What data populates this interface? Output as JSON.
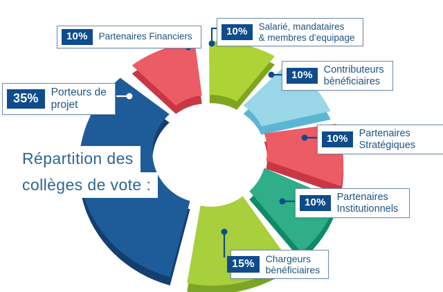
{
  "title": {
    "line1": "Répartition des",
    "line2": "collèges de vote :"
  },
  "chart_data": {
    "type": "pie",
    "subtype": "3d-exploded-donut",
    "title": "Répartition des collèges de vote",
    "unit": "%",
    "order": "clockwise-from-top",
    "legend_position": "floating-callouts",
    "segments": [
      {
        "id": "salarie",
        "label": "Salarié, mandataires & membres d’equipage",
        "value": 10,
        "color": "#aed336",
        "side_color": "#7fa51f"
      },
      {
        "id": "contributeurs",
        "label": "Contributeurs bènéficiaires",
        "value": 10,
        "color": "#99d7e9",
        "side_color": "#5cb6d3"
      },
      {
        "id": "strategiques",
        "label": "Partenaires Stratégiques",
        "value": 10,
        "color": "#ec5c64",
        "side_color": "#c93745"
      },
      {
        "id": "institutionnels",
        "label": "Partenaires Institutionnels",
        "value": 10,
        "color": "#2fae88",
        "side_color": "#0f8a66"
      },
      {
        "id": "chargeurs",
        "label": "Chargeurs bènéficiaires",
        "value": 15,
        "color": "#a8cf3c",
        "side_color": "#7ca426"
      },
      {
        "id": "porteurs",
        "label": "Porteurs de projet",
        "value": 35,
        "color": "#1e5b99",
        "side_color": "#133f6f"
      },
      {
        "id": "financiers",
        "label": "Partenaires Financiers",
        "value": 10,
        "color": "#ec5c64",
        "side_color": "#c93745"
      }
    ]
  },
  "labels": {
    "financiers": {
      "pct": "10%",
      "line1": "Partenaires Financiers"
    },
    "salarie": {
      "pct": "10%",
      "line1": "Salarié, mandataires",
      "line2": "& membres d’equipage"
    },
    "contributeurs": {
      "pct": "10%",
      "line1": "Contributeurs",
      "line2": "bènéficiaires"
    },
    "strategiques": {
      "pct": "10%",
      "line1": "Partenaires",
      "line2": "Stratégiques"
    },
    "institutionnels": {
      "pct": "10%",
      "line1": "Partenaires",
      "line2": "Institutionnels"
    },
    "chargeurs": {
      "pct": "15%",
      "line1": "Chargeurs",
      "line2": "bènéficiaires"
    },
    "porteurs": {
      "pct": "35%",
      "line1": "Porteurs de",
      "line2": "projet"
    }
  },
  "colors": {
    "navy": "#0e4c8c",
    "title_blue": "#2f6593",
    "label_text": "#1f5380",
    "box_border": "#6d8cab",
    "background": "#ffffff",
    "white_leader": "#ffffff"
  }
}
